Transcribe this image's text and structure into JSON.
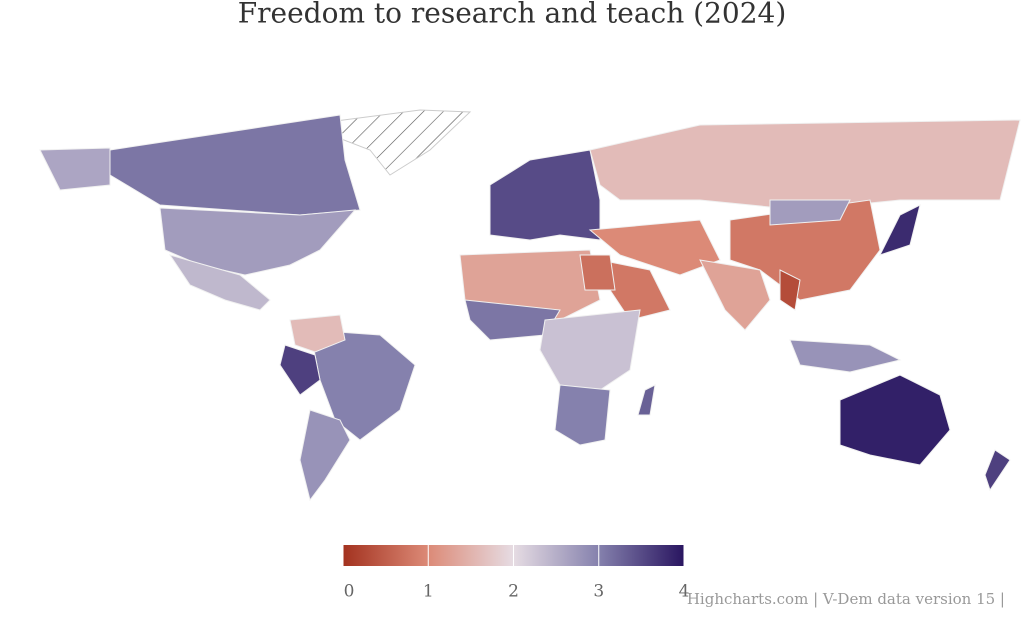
{
  "chart_data": {
    "type": "map",
    "title": "Freedom to research and teach (2024)",
    "values": [
      3.1,
      2.6,
      2.7,
      2.4,
      3.0,
      3.6,
      2.8,
      1.6,
      3.5,
      1.6,
      1.0,
      0.8,
      0.8,
      2.7,
      1.3,
      0.3,
      3.8,
      2.8,
      3.9,
      3.6,
      1.3,
      0.7,
      3.1,
      2.3,
      3.0,
      3.3
    ],
    "colorAxis": {
      "min": 0,
      "max": 4,
      "ticks": [
        0,
        1,
        2,
        3,
        4
      ],
      "stops": [
        [
          0,
          "#a3321f"
        ],
        [
          1,
          "#dc8a77"
        ],
        [
          2,
          "#e6dce3"
        ],
        [
          3,
          "#8581ad"
        ],
        [
          4,
          "#291560"
        ]
      ]
    },
    "credits": "Highcharts.com | V-Dem data version 15 |"
  }
}
